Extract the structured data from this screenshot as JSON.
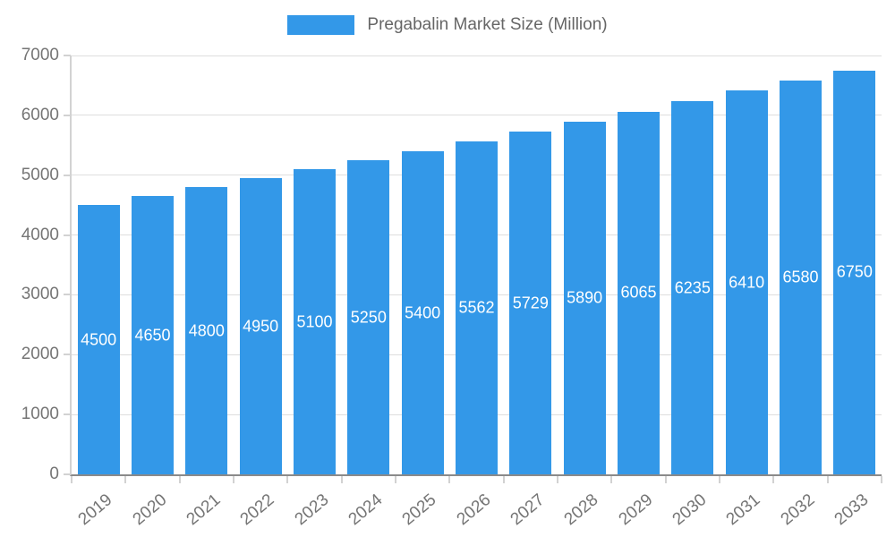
{
  "chart_data": {
    "type": "bar",
    "title": "Pregabalin Market Size (Million)",
    "categories": [
      "2019",
      "2020",
      "2021",
      "2022",
      "2023",
      "2024",
      "2025",
      "2026",
      "2027",
      "2028",
      "2029",
      "2030",
      "2031",
      "2032",
      "2033"
    ],
    "values": [
      4500,
      4650,
      4800,
      4950,
      5100,
      5250,
      5400,
      5562,
      5729,
      5890,
      6065,
      6235,
      6410,
      6580,
      6750
    ],
    "xlabel": "",
    "ylabel": "",
    "ylim": [
      0,
      7000
    ],
    "yticks": [
      0,
      1000,
      2000,
      3000,
      4000,
      5000,
      6000,
      7000
    ],
    "grid": true,
    "legend_position": "top",
    "bar_color": "#3398e8",
    "value_label_color": "#ffffff",
    "axis_text_color": "#757575",
    "grid_color": "#dedede"
  }
}
